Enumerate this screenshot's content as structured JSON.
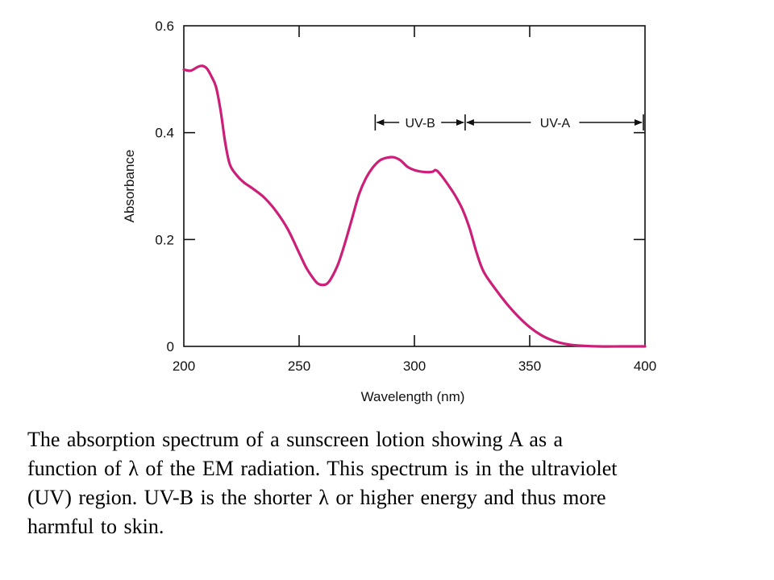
{
  "chart_data": {
    "type": "line",
    "title": "",
    "xlabel": "Wavelength (nm)",
    "ylabel": "Absorbance",
    "xlim": [
      200,
      400
    ],
    "ylim": [
      0,
      0.6
    ],
    "x_ticks": [
      "200",
      "250",
      "300",
      "350",
      "400"
    ],
    "y_ticks": [
      "0",
      "0.2",
      "0.4",
      "0.6"
    ],
    "grid": false,
    "line_color": "#cc1f78",
    "series": [
      {
        "name": "",
        "points": [
          [
            200,
            0.518
          ],
          [
            203,
            0.516
          ],
          [
            206,
            0.523
          ],
          [
            208,
            0.525
          ],
          [
            210,
            0.52
          ],
          [
            212,
            0.505
          ],
          [
            214,
            0.485
          ],
          [
            216,
            0.44
          ],
          [
            218,
            0.38
          ],
          [
            220,
            0.34
          ],
          [
            223,
            0.32
          ],
          [
            226,
            0.307
          ],
          [
            230,
            0.295
          ],
          [
            235,
            0.278
          ],
          [
            240,
            0.253
          ],
          [
            245,
            0.22
          ],
          [
            250,
            0.175
          ],
          [
            253,
            0.148
          ],
          [
            256,
            0.128
          ],
          [
            258,
            0.118
          ],
          [
            260,
            0.115
          ],
          [
            262,
            0.117
          ],
          [
            264,
            0.128
          ],
          [
            267,
            0.155
          ],
          [
            270,
            0.195
          ],
          [
            273,
            0.24
          ],
          [
            276,
            0.285
          ],
          [
            279,
            0.315
          ],
          [
            282,
            0.335
          ],
          [
            285,
            0.348
          ],
          [
            288,
            0.353
          ],
          [
            291,
            0.354
          ],
          [
            294,
            0.348
          ],
          [
            297,
            0.336
          ],
          [
            300,
            0.33
          ],
          [
            303,
            0.327
          ],
          [
            306,
            0.326
          ],
          [
            308,
            0.327
          ],
          [
            309,
            0.33
          ],
          [
            310,
            0.328
          ],
          [
            312,
            0.318
          ],
          [
            315,
            0.3
          ],
          [
            318,
            0.28
          ],
          [
            321,
            0.255
          ],
          [
            324,
            0.22
          ],
          [
            327,
            0.175
          ],
          [
            330,
            0.14
          ],
          [
            335,
            0.108
          ],
          [
            340,
            0.08
          ],
          [
            345,
            0.056
          ],
          [
            350,
            0.036
          ],
          [
            355,
            0.021
          ],
          [
            360,
            0.011
          ],
          [
            365,
            0.005
          ],
          [
            370,
            0.002
          ],
          [
            380,
            0.0
          ],
          [
            390,
            0.0
          ],
          [
            400,
            0.0
          ]
        ]
      }
    ],
    "annotations": {
      "uvb_label": "UV-B",
      "uvb_range": [
        283,
        322
      ],
      "uva_label": "UV-A",
      "uva_range": [
        322,
        400
      ]
    }
  },
  "caption": {
    "line1": "The absorption spectrum of a sunscreen lotion showing A as a",
    "line2": "function of λ of the EM radiation.  This spectrum is in the ultraviolet",
    "line3": "(UV) region.  UV-B is the shorter λ or higher energy and thus more",
    "line4": "harmful to skin."
  }
}
